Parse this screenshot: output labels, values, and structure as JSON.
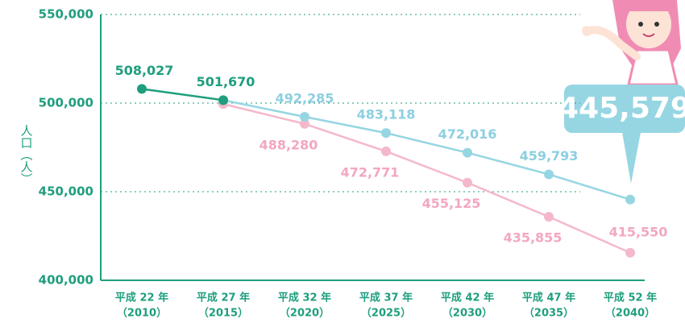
{
  "chart_data": {
    "type": "line",
    "y_label": "人口（人）",
    "categories": [
      "平成 22 年",
      "平成 27 年",
      "平成 32 年",
      "平成 37 年",
      "平成 42 年",
      "平成 47 年",
      "平成 52 年"
    ],
    "category_sublabels": [
      "（2010）",
      "（2015）",
      "（2020）",
      "（2025）",
      "（2030）",
      "（2035）",
      "（2040）"
    ],
    "ylim": [
      400000,
      550000
    ],
    "yticks": [
      {
        "value": 400000,
        "label": "400,000"
      },
      {
        "value": 450000,
        "label": "450,000"
      },
      {
        "value": 500000,
        "label": "500,000"
      },
      {
        "value": 550000,
        "label": "550,000"
      }
    ],
    "grid": true,
    "series": [
      {
        "color": "#1f9e7e",
        "values": [
          508027,
          501670,
          null,
          null,
          null,
          null,
          null
        ],
        "value_labels": [
          "508,027",
          "501,670",
          null,
          null,
          null,
          null,
          null
        ]
      },
      {
        "color": "#96d6e3",
        "values": [
          null,
          501670,
          492285,
          483118,
          472016,
          459793,
          445579
        ],
        "value_labels": [
          null,
          null,
          "492,285",
          "483,118",
          "472,016",
          "459,793",
          "445,579"
        ]
      },
      {
        "color": "#f5b8cb",
        "values": [
          null,
          499500,
          488280,
          472771,
          455125,
          435855,
          415550
        ],
        "value_labels": [
          null,
          null,
          "488,280",
          "472,771",
          "455,125",
          "435,855",
          "415,550"
        ]
      }
    ]
  }
}
